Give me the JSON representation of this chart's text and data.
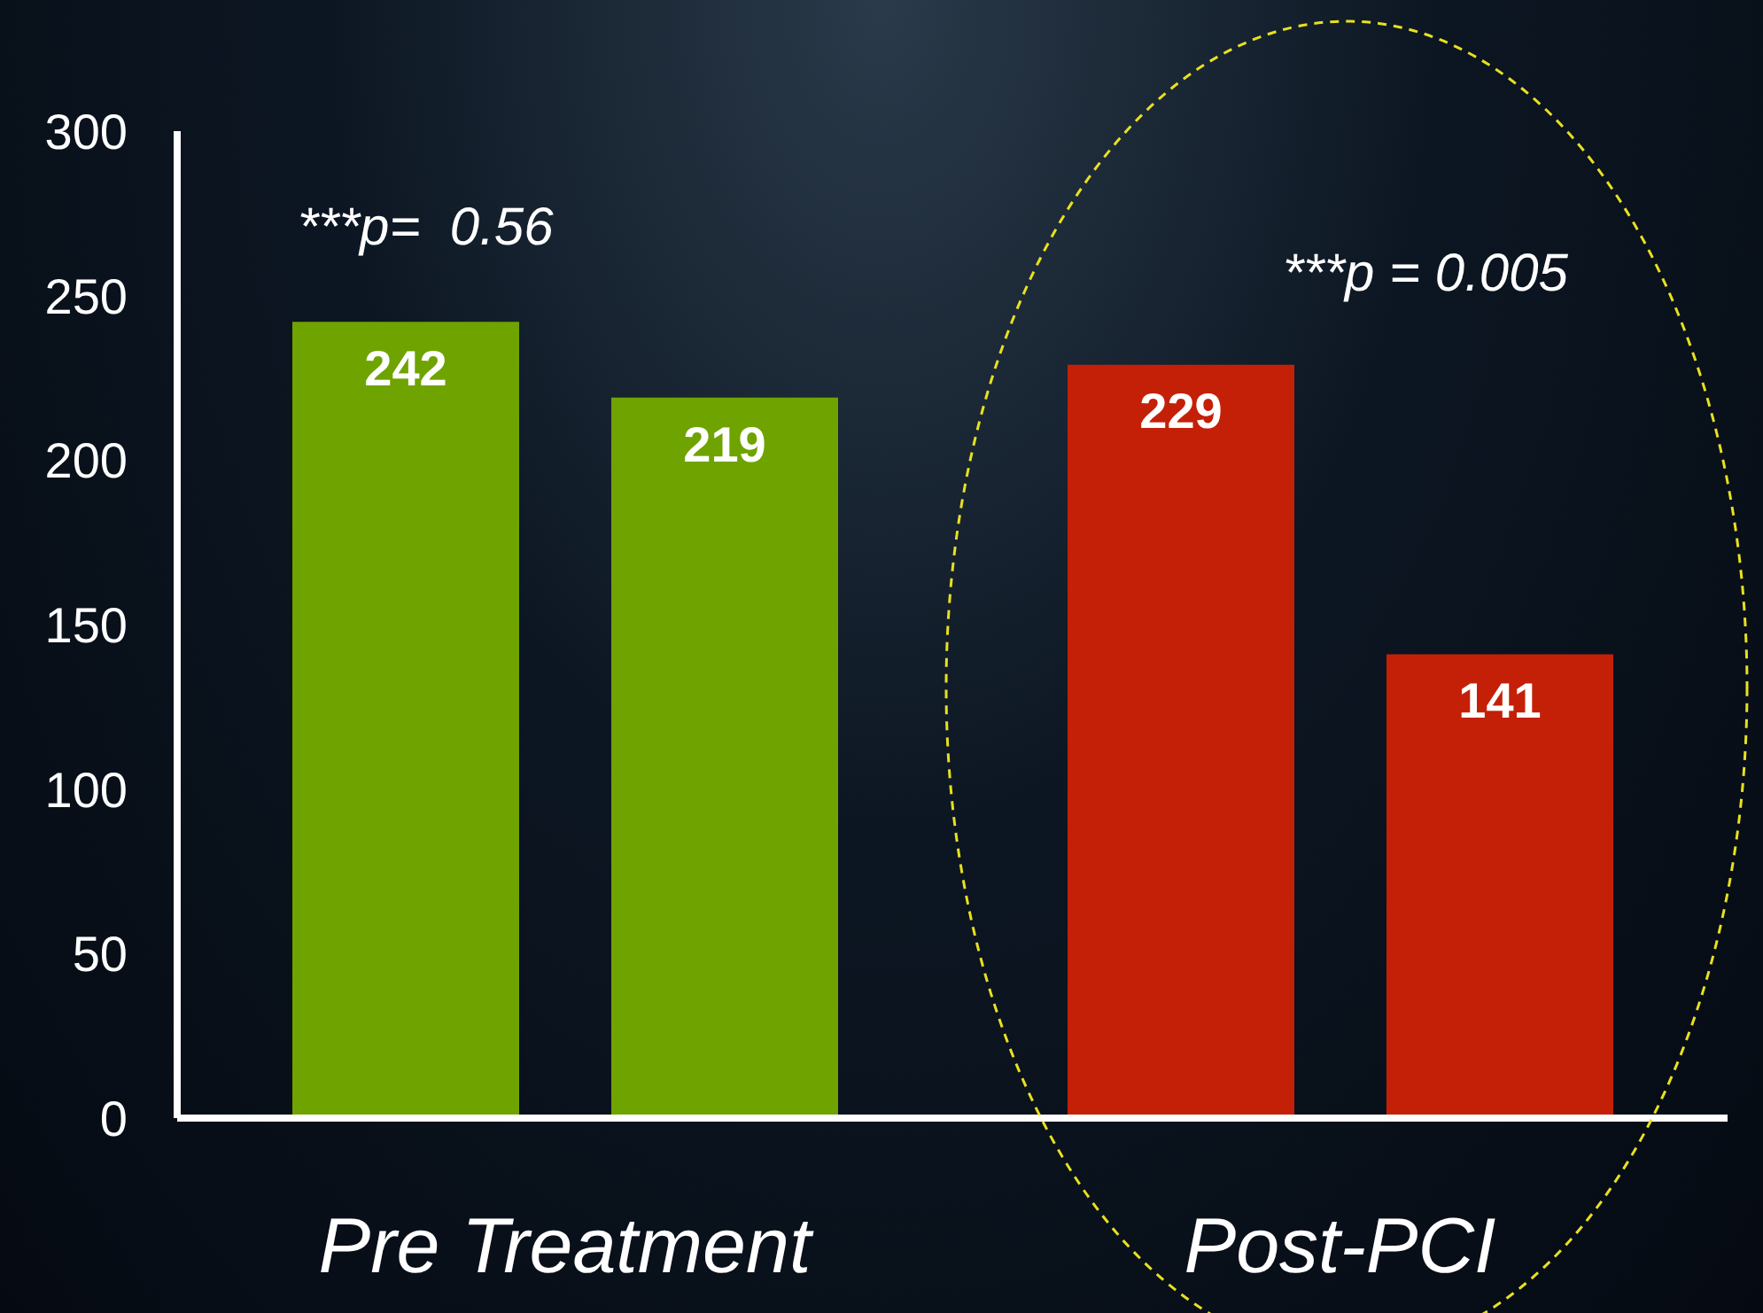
{
  "chart_data": {
    "type": "bar",
    "categories": [
      "Pre Treatment",
      "Post-PCI"
    ],
    "series": [
      {
        "colors": [
          "#6fa300",
          "#c42008"
        ],
        "values": [
          242,
          229
        ]
      },
      {
        "colors": [
          "#6fa300",
          "#c42008"
        ],
        "values": [
          219,
          141
        ]
      }
    ],
    "ylim": [
      0,
      300
    ],
    "yticks": [
      0,
      50,
      100,
      150,
      200,
      250,
      300
    ],
    "data_labels": true,
    "annotations": [
      "***p=  0.56",
      "***p = 0.005"
    ]
  }
}
